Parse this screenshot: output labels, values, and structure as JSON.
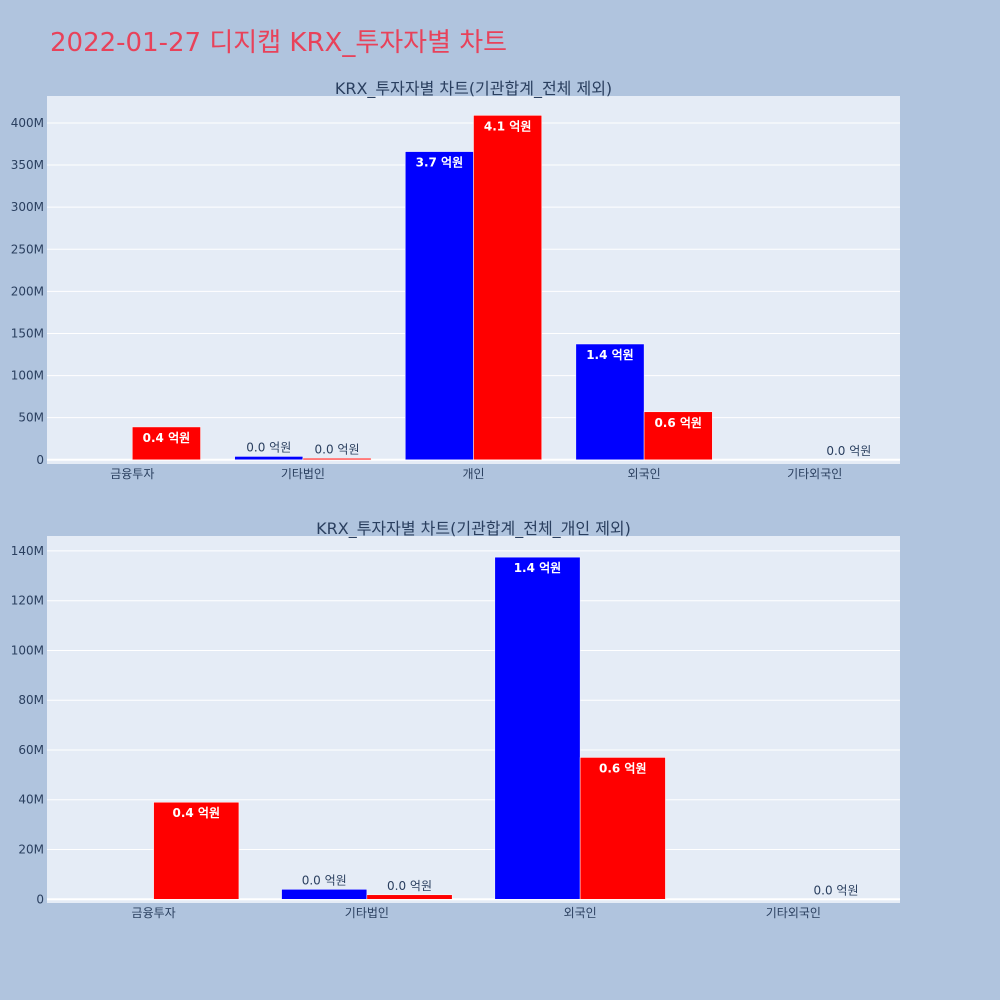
{
  "title": "2022-01-27 디지캡 KRX_투자자별 차트",
  "colors": {
    "background": "#b0c4de",
    "plot_bg": "#e5ecf6",
    "series1": "#0000ff",
    "series2": "#ff0000",
    "title": "#e8425a"
  },
  "chart_data": [
    {
      "type": "bar",
      "title": "KRX_투자자별 차트(기관합계_전체 제외)",
      "categories": [
        "금융투자",
        "기타법인",
        "개인",
        "외국인",
        "기타외국인"
      ],
      "series": [
        {
          "values": [
            0,
            4000000,
            366000000,
            137500000,
            0
          ],
          "labels": [
            "",
            "0.0 억원",
            "3.7 억원",
            "1.4 억원",
            ""
          ]
        },
        {
          "values": [
            39000000,
            1800000,
            409000000,
            57000000,
            0
          ],
          "labels": [
            "0.4 억원",
            "0.0 억원",
            "4.1 억원",
            "0.6 억원",
            "0.0 억원"
          ]
        }
      ],
      "ylim": [
        -5000000,
        432000000
      ],
      "yticks": [
        0,
        50000000,
        100000000,
        150000000,
        200000000,
        250000000,
        300000000,
        350000000,
        400000000
      ],
      "ytick_labels": [
        "0",
        "50M",
        "100M",
        "150M",
        "200M",
        "250M",
        "300M",
        "350M",
        "400M"
      ],
      "grid": true
    },
    {
      "type": "bar",
      "title": "KRX_투자자별 차트(기관합계_전체_개인 제외)",
      "categories": [
        "금융투자",
        "기타법인",
        "외국인",
        "기타외국인"
      ],
      "series": [
        {
          "values": [
            0,
            4000000,
            137500000,
            0
          ],
          "labels": [
            "",
            "0.0 억원",
            "1.4 억원",
            ""
          ]
        },
        {
          "values": [
            39000000,
            1800000,
            57000000,
            0
          ],
          "labels": [
            "0.4 억원",
            "0.0 억원",
            "0.6 억원",
            "0.0 억원"
          ]
        }
      ],
      "ylim": [
        -1500000,
        146000000
      ],
      "yticks": [
        0,
        20000000,
        40000000,
        60000000,
        80000000,
        100000000,
        120000000,
        140000000
      ],
      "ytick_labels": [
        "0",
        "20M",
        "40M",
        "60M",
        "80M",
        "100M",
        "120M",
        "140M"
      ],
      "grid": true
    }
  ]
}
